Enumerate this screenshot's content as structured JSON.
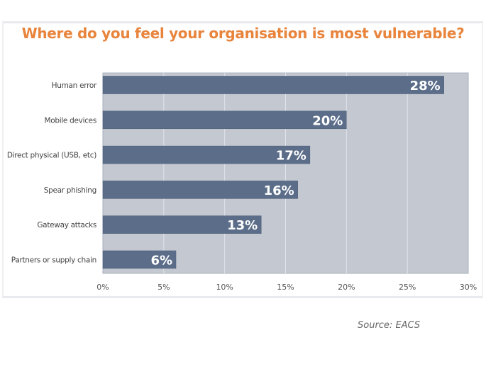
{
  "chart_data": {
    "type": "bar",
    "orientation": "horizontal",
    "title": "Where do you feel your organisation is most vulnerable?",
    "categories": [
      "Human error",
      "Mobile devices",
      "Direct physical (USB, etc)",
      "Spear phishing",
      "Gateway attacks",
      "Partners or supply chain"
    ],
    "values": [
      28,
      20,
      17,
      16,
      13,
      6
    ],
    "data_labels": [
      "28%",
      "20%",
      "17%",
      "16%",
      "13%",
      "6%"
    ],
    "xlim": [
      0,
      30
    ],
    "xticks": [
      0,
      5,
      10,
      15,
      20,
      25,
      30
    ],
    "xtick_labels": [
      "0%",
      "5%",
      "10%",
      "15%",
      "20%",
      "25%",
      "30%"
    ],
    "grid": true,
    "colors": {
      "bar": "#5b6d89",
      "plot_bg": "#c3c8d1",
      "title": "#e8843c",
      "grid": "#e2e5ea"
    }
  },
  "source": "Source: EACS"
}
